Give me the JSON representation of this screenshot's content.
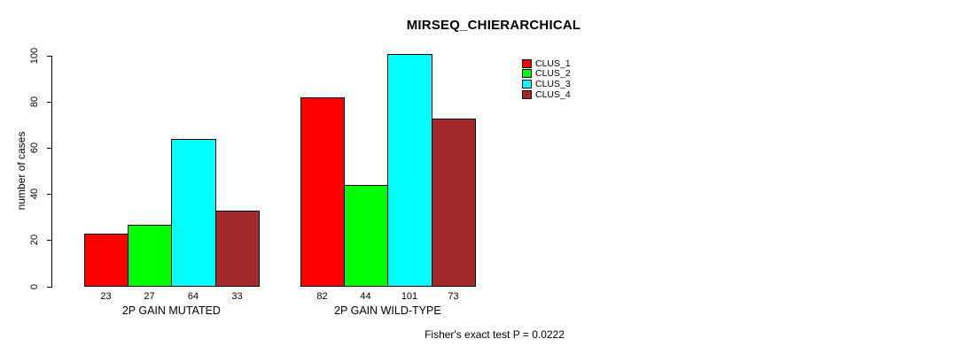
{
  "chart_data": {
    "type": "bar",
    "title": "MIRSEQ_CHIERARCHICAL",
    "xlabel": "",
    "ylabel": "number of cases",
    "ylim": [
      0,
      100
    ],
    "yticks": [
      "0",
      "20",
      "40",
      "60",
      "80",
      "100"
    ],
    "grid": false,
    "legend_position": "top-right",
    "bar_value_labels": true,
    "categories": [
      "2P GAIN MUTATED",
      "2P GAIN WILD-TYPE"
    ],
    "series": [
      {
        "name": "CLUS_1",
        "color": "#ff0000",
        "values": [
          23,
          82
        ]
      },
      {
        "name": "CLUS_2",
        "color": "#00ff00",
        "values": [
          27,
          44
        ]
      },
      {
        "name": "CLUS_3",
        "color": "#00ffff",
        "values": [
          64,
          101
        ]
      },
      {
        "name": "CLUS_4",
        "color": "#a52a2a",
        "values": [
          33,
          73
        ]
      }
    ],
    "annotation": "Fisher's exact test P = 0.0222"
  }
}
